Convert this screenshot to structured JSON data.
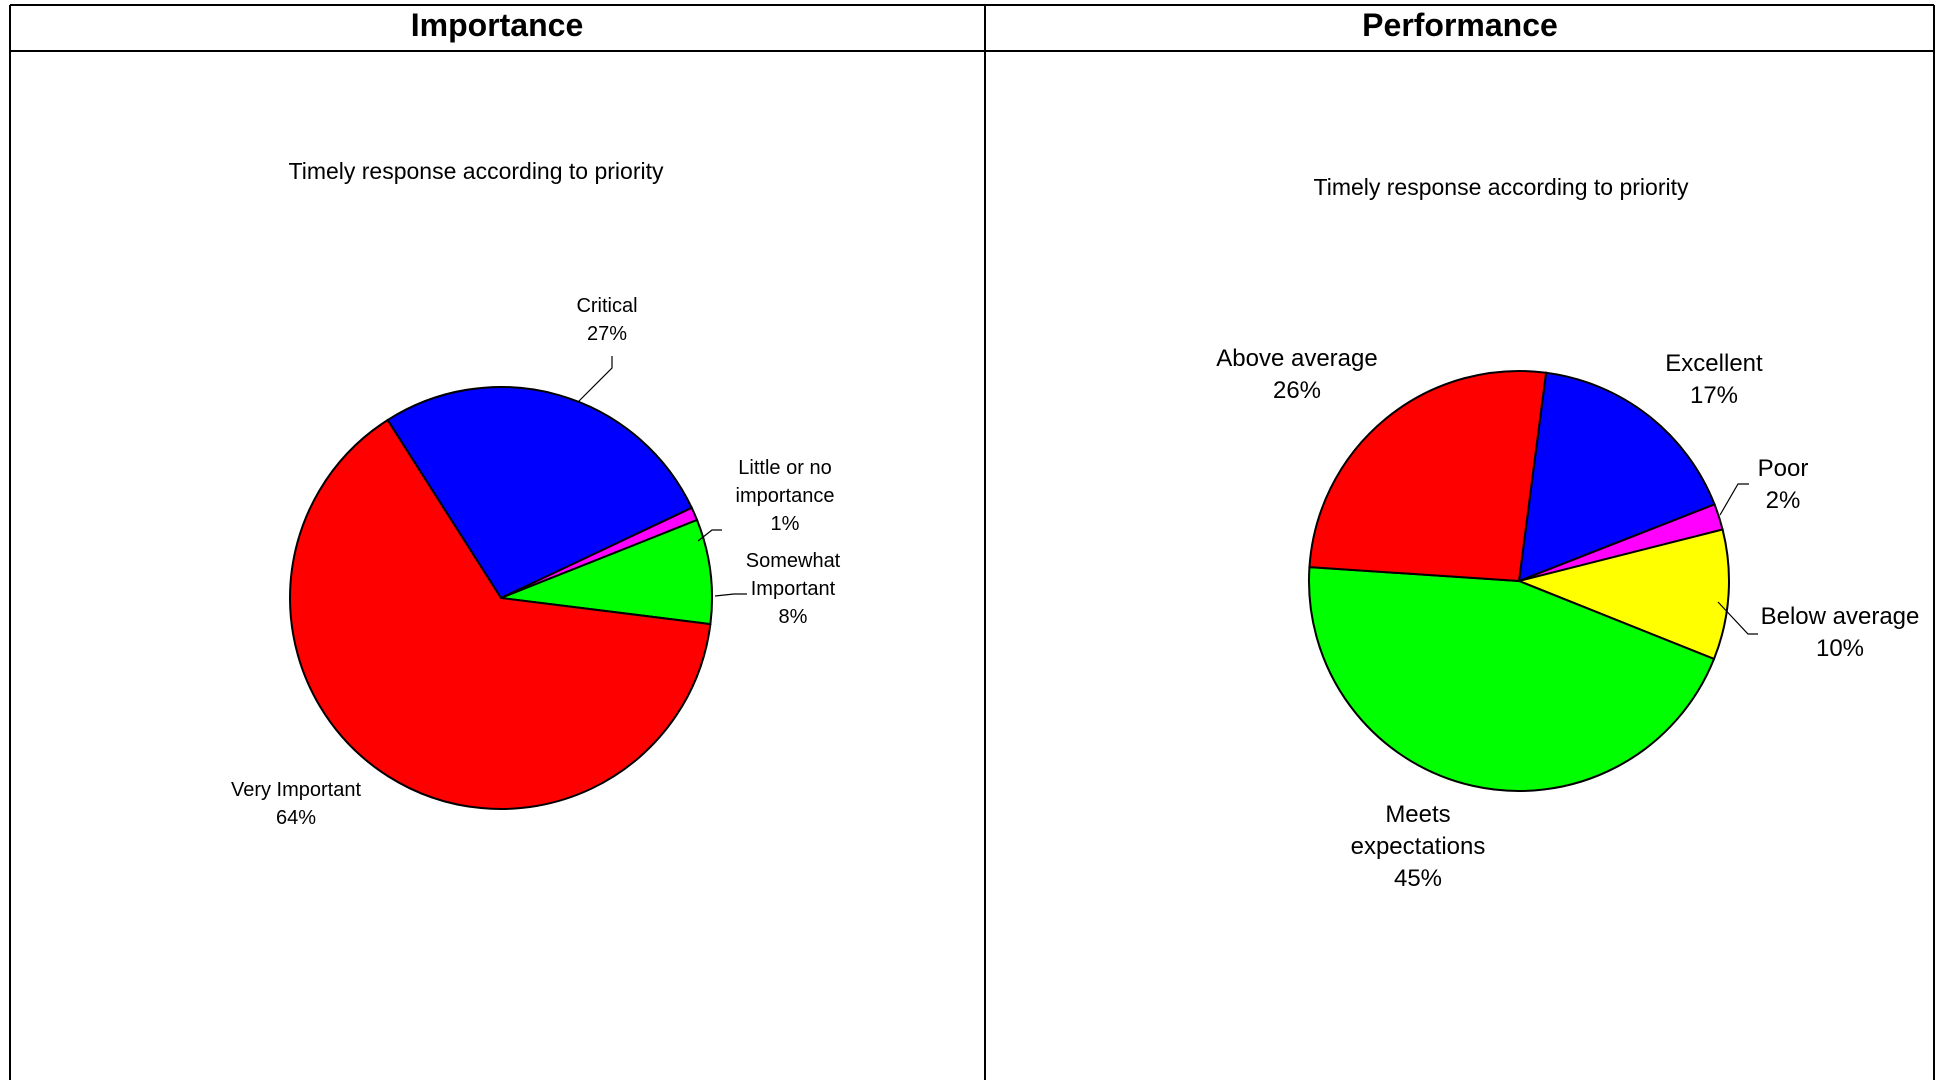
{
  "headers": {
    "left": "Importance",
    "right": "Performance"
  },
  "chart_data": [
    {
      "type": "pie",
      "title": "Timely response according to priority",
      "slices": [
        {
          "label_lines": [
            "Critical"
          ],
          "value": 27,
          "percent_label": "27%",
          "color": "#0000ff"
        },
        {
          "label_lines": [
            "Little or no",
            "importance"
          ],
          "value": 1,
          "percent_label": "1%",
          "color": "#ff00ff"
        },
        {
          "label_lines": [
            "Somewhat",
            "Important"
          ],
          "value": 8,
          "percent_label": "8%",
          "color": "#00ff00"
        },
        {
          "label_lines": [
            "Very Important"
          ],
          "value": 64,
          "percent_label": "64%",
          "color": "#ff0000"
        }
      ]
    },
    {
      "type": "pie",
      "title": "Timely response according to priority",
      "slices": [
        {
          "label_lines": [
            "Excellent"
          ],
          "value": 17,
          "percent_label": "17%",
          "color": "#0000ff"
        },
        {
          "label_lines": [
            "Poor"
          ],
          "value": 2,
          "percent_label": "2%",
          "color": "#ff00ff"
        },
        {
          "label_lines": [
            "Below average"
          ],
          "value": 10,
          "percent_label": "10%",
          "color": "#ffff00"
        },
        {
          "label_lines": [
            "Meets",
            "expectations"
          ],
          "value": 45,
          "percent_label": "45%",
          "color": "#00ff00"
        },
        {
          "label_lines": [
            "Above average"
          ],
          "value": 26,
          "percent_label": "26%",
          "color": "#ff0000"
        }
      ]
    }
  ]
}
